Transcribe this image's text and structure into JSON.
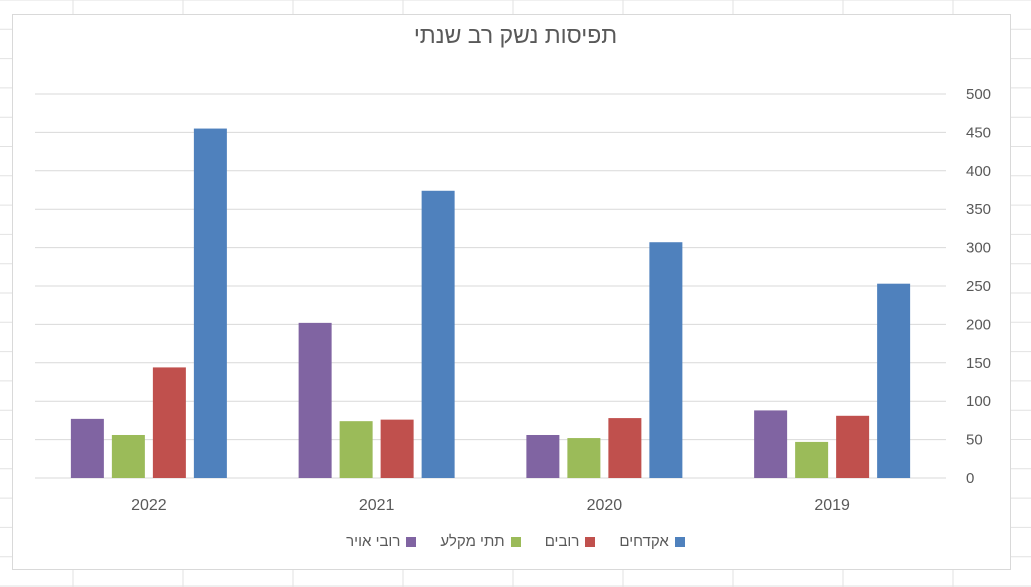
{
  "chart_data": {
    "type": "bar",
    "title": "תפיסות נשק רב שנתי",
    "categories": [
      "2022",
      "2021",
      "2020",
      "2019"
    ],
    "series": [
      {
        "name": "רובי אויר",
        "color": "#8064a2",
        "values": [
          77,
          202,
          56,
          88
        ]
      },
      {
        "name": "תתי מקלע",
        "color": "#9bbb59",
        "values": [
          56,
          74,
          52,
          47
        ]
      },
      {
        "name": "רובים",
        "color": "#c0504d",
        "values": [
          144,
          76,
          78,
          81
        ]
      },
      {
        "name": "אקדחים",
        "color": "#4f81bd",
        "values": [
          455,
          374,
          307,
          253
        ]
      }
    ],
    "legend_order": [
      "אקדחים",
      "רובים",
      "תתי מקלע",
      "רובי אויר"
    ],
    "ylim": [
      0,
      500
    ],
    "yticks": [
      "0",
      "50",
      "100",
      "150",
      "200",
      "250",
      "300",
      "350",
      "400",
      "450",
      "500"
    ],
    "y_axis_side": "right",
    "grid": true,
    "legend_position": "bottom"
  }
}
